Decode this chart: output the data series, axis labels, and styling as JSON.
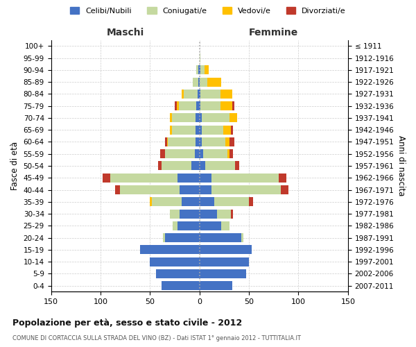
{
  "age_groups": [
    "0-4",
    "5-9",
    "10-14",
    "15-19",
    "20-24",
    "25-29",
    "30-34",
    "35-39",
    "40-44",
    "45-49",
    "50-54",
    "55-59",
    "60-64",
    "65-69",
    "70-74",
    "75-79",
    "80-84",
    "85-89",
    "90-94",
    "95-99",
    "100+"
  ],
  "birth_years": [
    "2007-2011",
    "2002-2006",
    "1997-2001",
    "1992-1996",
    "1987-1991",
    "1982-1986",
    "1977-1981",
    "1972-1976",
    "1967-1971",
    "1962-1966",
    "1957-1961",
    "1952-1956",
    "1947-1951",
    "1942-1946",
    "1937-1941",
    "1932-1936",
    "1927-1931",
    "1922-1926",
    "1917-1921",
    "1912-1916",
    "≤ 1911"
  ],
  "males": {
    "celibe": [
      38,
      44,
      50,
      60,
      35,
      22,
      20,
      18,
      20,
      22,
      8,
      5,
      4,
      4,
      4,
      3,
      2,
      1,
      1,
      0,
      0
    ],
    "coniugato": [
      0,
      0,
      0,
      0,
      2,
      5,
      10,
      30,
      60,
      68,
      30,
      30,
      28,
      24,
      24,
      18,
      14,
      6,
      2,
      0,
      0
    ],
    "vedovo": [
      0,
      0,
      0,
      0,
      0,
      0,
      0,
      2,
      0,
      0,
      0,
      0,
      1,
      2,
      2,
      2,
      2,
      0,
      0,
      0,
      0
    ],
    "divorziato": [
      0,
      0,
      0,
      0,
      0,
      0,
      0,
      0,
      5,
      8,
      4,
      5,
      2,
      0,
      0,
      2,
      0,
      0,
      0,
      0,
      0
    ]
  },
  "females": {
    "nubile": [
      33,
      47,
      50,
      53,
      42,
      22,
      18,
      15,
      12,
      12,
      6,
      4,
      2,
      2,
      2,
      1,
      1,
      0,
      1,
      0,
      0
    ],
    "coniugata": [
      0,
      0,
      0,
      0,
      2,
      8,
      14,
      35,
      70,
      68,
      30,
      24,
      24,
      22,
      28,
      20,
      20,
      8,
      4,
      1,
      0
    ],
    "vedova": [
      0,
      0,
      0,
      0,
      0,
      0,
      0,
      0,
      0,
      0,
      0,
      2,
      4,
      8,
      8,
      12,
      12,
      14,
      4,
      0,
      0
    ],
    "divorziata": [
      0,
      0,
      0,
      0,
      0,
      0,
      2,
      4,
      8,
      8,
      4,
      4,
      5,
      2,
      0,
      2,
      0,
      0,
      0,
      0,
      0
    ]
  },
  "colors": {
    "celibe": "#4472c4",
    "coniugato": "#c5d9a0",
    "vedovo": "#ffc000",
    "divorziato": "#c0392b"
  },
  "legend_labels": [
    "Celibi/Nubili",
    "Coniugati/e",
    "Vedovi/e",
    "Divorziati/e"
  ],
  "xlim": 150,
  "title1": "Popolazione per età, sesso e stato civile - 2012",
  "title2": "COMUNE DI CORTACCIA SULLA STRADA DEL VINO (BZ) - Dati ISTAT 1° gennaio 2012 - TUTTITALIA.IT",
  "xlabel_left": "Maschi",
  "xlabel_right": "Femmine",
  "ylabel_left": "Fasce di età",
  "ylabel_right": "Anni di nascita",
  "bg_color": "#ffffff",
  "grid_color": "#cccccc"
}
